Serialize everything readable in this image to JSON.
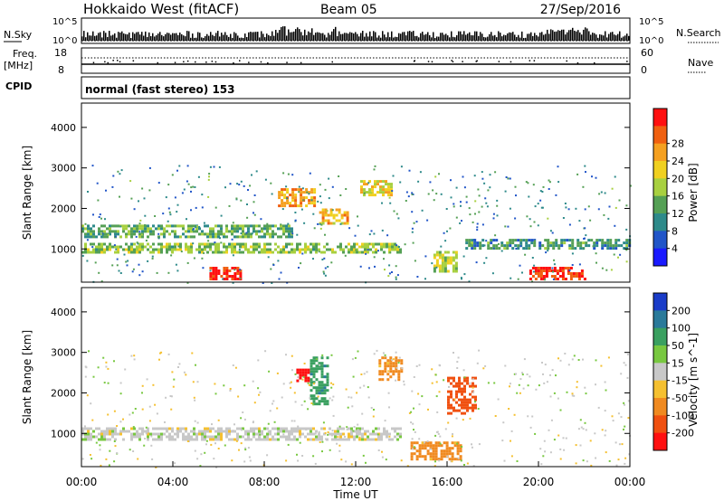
{
  "header": {
    "radar": "Hokkaido West (fitACF)",
    "beam": "Beam 05",
    "date": "27/Sep/2016"
  },
  "status_panels": {
    "nsky_label": "N.Sky",
    "nsearch_label": "N.Search",
    "nsky_ticks": [
      "10^5",
      "10^0"
    ],
    "nsearch_ticks": [
      "10^5",
      "10^0"
    ],
    "freq_label": "Freq.",
    "freq_unit": "[MHz]",
    "freq_ticks": [
      "18",
      "8"
    ],
    "nave_label": "Nave",
    "nave_ticks": [
      "60",
      "0"
    ],
    "cpid_label": "CPID",
    "cpid_value": "normal (fast stereo) 153"
  },
  "chart_data": [
    {
      "type": "heatmap",
      "quantity": "Power",
      "ylabel": "Slant Range [km]",
      "ylim": [
        180,
        4600
      ],
      "yticks": [
        "1000",
        "2000",
        "3000",
        "4000"
      ],
      "colorbar_label": "Power [dB]",
      "colorbar_ticks": [
        "4",
        "8",
        "12",
        "16",
        "20",
        "24",
        "28"
      ],
      "colorbar_colors": [
        "#1a1aff",
        "#2155c8",
        "#2e8a8a",
        "#55a055",
        "#a8d040",
        "#f0d020",
        "#f5a020",
        "#f06010",
        "#ff1010"
      ],
      "regions": [
        {
          "t": [
            0.0,
            14.0
          ],
          "r": [
            900,
            1150
          ],
          "level": 14
        },
        {
          "t": [
            0.0,
            9.2
          ],
          "r": [
            1300,
            1600
          ],
          "level": 12
        },
        {
          "t": [
            5.6,
            7.0
          ],
          "r": [
            280,
            560
          ],
          "level": 28
        },
        {
          "t": [
            8.6,
            10.2
          ],
          "r": [
            2050,
            2500
          ],
          "level": 22
        },
        {
          "t": [
            10.4,
            11.6
          ],
          "r": [
            1650,
            2000
          ],
          "level": 20
        },
        {
          "t": [
            12.2,
            13.6
          ],
          "r": [
            2300,
            2700
          ],
          "level": 18
        },
        {
          "t": [
            15.4,
            16.4
          ],
          "r": [
            450,
            950
          ],
          "level": 16
        },
        {
          "t": [
            19.6,
            22.0
          ],
          "r": [
            280,
            560
          ],
          "level": 28
        },
        {
          "t": [
            16.8,
            24.0
          ],
          "r": [
            1000,
            1250
          ],
          "level": 10
        }
      ]
    },
    {
      "type": "heatmap",
      "quantity": "Velocity",
      "xlabel": "Time UT",
      "ylabel": "Slant Range [km]",
      "xticks": [
        "00:00",
        "04:00",
        "08:00",
        "12:00",
        "16:00",
        "20:00",
        "00:00"
      ],
      "xlim": [
        0,
        24
      ],
      "ylim": [
        180,
        4600
      ],
      "yticks": [
        "1000",
        "2000",
        "3000",
        "4000"
      ],
      "colorbar_label": "Velocity [m s^-1]",
      "colorbar_ticks": [
        "200",
        "100",
        "50",
        "15",
        "-15",
        "-50",
        "-100",
        "-200"
      ],
      "colorbar_colors": [
        "#1a3cc8",
        "#2a7a9a",
        "#3aa060",
        "#78c840",
        "#c8c8c8",
        "#f5c030",
        "#f08a20",
        "#f05010",
        "#ff1010"
      ],
      "regions": [
        {
          "t": [
            0.0,
            14.0
          ],
          "r": [
            850,
            1150
          ],
          "velocity": 0
        },
        {
          "t": [
            10.0,
            10.8
          ],
          "r": [
            1700,
            2900
          ],
          "velocity": 60
        },
        {
          "t": [
            9.4,
            9.9
          ],
          "r": [
            2300,
            2600
          ],
          "velocity": -200
        },
        {
          "t": [
            16.0,
            17.2
          ],
          "r": [
            1500,
            2400
          ],
          "velocity": -100
        },
        {
          "t": [
            13.0,
            14.0
          ],
          "r": [
            2300,
            2900
          ],
          "velocity": -50
        },
        {
          "t": [
            14.4,
            16.6
          ],
          "r": [
            350,
            800
          ],
          "velocity": -50
        }
      ]
    }
  ]
}
